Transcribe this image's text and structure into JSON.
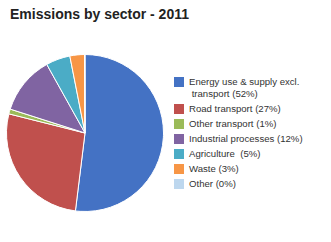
{
  "chart_data": {
    "type": "pie",
    "title": "Emissions by sector - 2011",
    "categories": [
      "Energy use & supply excl.\n transport (52%)",
      "Road transport (27%)",
      "Other transport (1%)",
      "Industrial processes (12%)",
      "Agriculture  (5%)",
      "Waste (3%)",
      "Other (0%)"
    ],
    "values": [
      52,
      27,
      1,
      12,
      5,
      3,
      0.1
    ],
    "colors": [
      "#4472C4",
      "#C0504D",
      "#9BBB59",
      "#8064A2",
      "#4BACC6",
      "#F79646",
      "#BDD7EE"
    ],
    "legend": "right"
  }
}
